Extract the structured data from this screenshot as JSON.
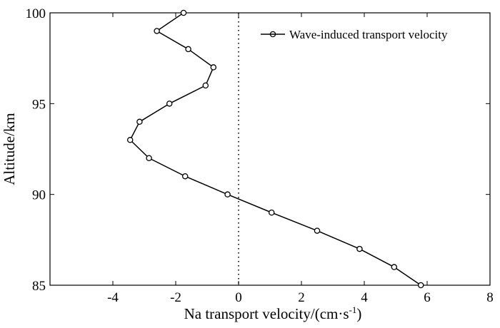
{
  "chart_data": {
    "type": "line",
    "title": "",
    "xlabel": "Na transport velocity/(cm·s",
    "xlabel_superscript": "-1",
    "xlabel_suffix": ")",
    "ylabel": "Altitude/km",
    "xlim": [
      -6,
      8
    ],
    "ylim": [
      85,
      100
    ],
    "x_ticks": [
      -4,
      -2,
      0,
      2,
      4,
      6,
      8
    ],
    "y_ticks": [
      85,
      90,
      95,
      100
    ],
    "x_tick_labels": [
      "-4",
      "-2",
      "0",
      "2",
      "4",
      "6",
      "8"
    ],
    "y_tick_labels": [
      "85",
      "90",
      "95",
      "100"
    ],
    "grid": false,
    "legend_position": "top-right",
    "reference_line": {
      "x": 0,
      "style": "dotted"
    },
    "series": [
      {
        "name": "Wave-induced transport velocity",
        "marker": "circle",
        "color": "#000000",
        "points": [
          {
            "x": 5.8,
            "y": 85
          },
          {
            "x": 4.95,
            "y": 86
          },
          {
            "x": 3.85,
            "y": 87
          },
          {
            "x": 2.5,
            "y": 88
          },
          {
            "x": 1.05,
            "y": 89
          },
          {
            "x": -0.35,
            "y": 90
          },
          {
            "x": -1.7,
            "y": 91
          },
          {
            "x": -2.85,
            "y": 92
          },
          {
            "x": -3.45,
            "y": 93
          },
          {
            "x": -3.15,
            "y": 94
          },
          {
            "x": -2.2,
            "y": 95
          },
          {
            "x": -1.05,
            "y": 96
          },
          {
            "x": -0.8,
            "y": 97
          },
          {
            "x": -1.6,
            "y": 98
          },
          {
            "x": -2.6,
            "y": 99
          },
          {
            "x": -1.75,
            "y": 100
          }
        ]
      }
    ]
  }
}
